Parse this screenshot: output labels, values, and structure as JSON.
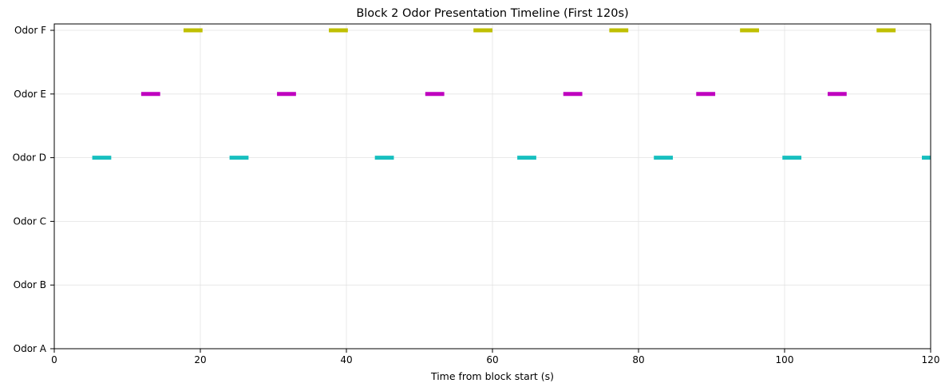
{
  "chart_data": {
    "type": "timeline",
    "title": "Block 2 Odor Presentation Timeline (First 120s)",
    "xlabel": "Time from block start (s)",
    "ylabel": "",
    "xlim": [
      0,
      120
    ],
    "xticks": [
      0,
      20,
      40,
      60,
      80,
      100,
      120
    ],
    "categories": [
      "Odor A",
      "Odor B",
      "Odor C",
      "Odor D",
      "Odor E",
      "Odor F"
    ],
    "grid": true,
    "series": [
      {
        "category": "Odor D",
        "color": "#17bfbf",
        "intervals": [
          [
            5.2,
            7.8
          ],
          [
            24.0,
            26.6
          ],
          [
            43.9,
            46.5
          ],
          [
            63.4,
            66.0
          ],
          [
            82.1,
            84.7
          ],
          [
            99.7,
            102.3
          ],
          [
            118.8,
            120.0
          ]
        ]
      },
      {
        "category": "Odor E",
        "color": "#bf00bf",
        "intervals": [
          [
            11.9,
            14.5
          ],
          [
            30.5,
            33.1
          ],
          [
            50.8,
            53.4
          ],
          [
            69.7,
            72.3
          ],
          [
            87.9,
            90.5
          ],
          [
            105.9,
            108.5
          ]
        ]
      },
      {
        "category": "Odor F",
        "color": "#bfbf00",
        "intervals": [
          [
            17.7,
            20.3
          ],
          [
            37.6,
            40.2
          ],
          [
            57.4,
            60.0
          ],
          [
            76.0,
            78.6
          ],
          [
            93.9,
            96.5
          ],
          [
            112.6,
            115.2
          ]
        ]
      }
    ]
  }
}
